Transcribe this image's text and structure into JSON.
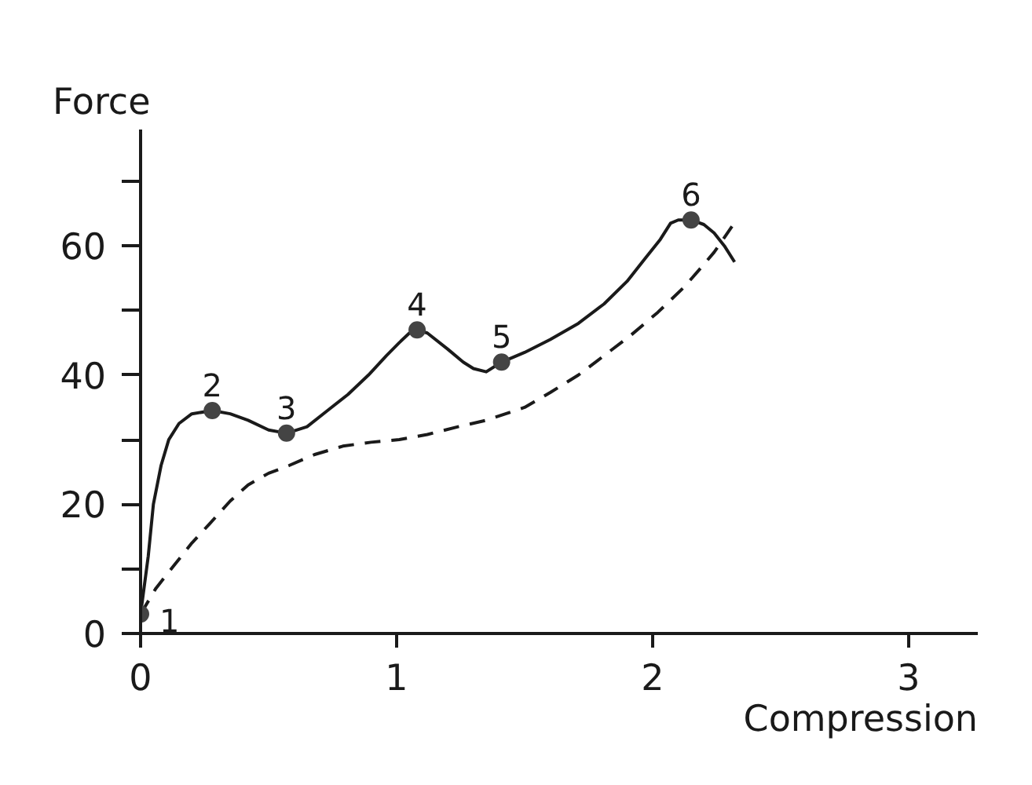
{
  "chart_data": {
    "type": "line",
    "xlabel": "Compression",
    "ylabel": "Force",
    "xlim": [
      0,
      3.27
    ],
    "ylim": [
      0,
      78
    ],
    "xticks": [
      0,
      1,
      2,
      3
    ],
    "yticks": [
      0,
      {
        "value": 10,
        "label": null
      },
      20,
      {
        "value": 30,
        "label": null
      },
      40,
      {
        "value": 50,
        "label": null
      },
      60,
      {
        "value": 70,
        "label": null
      }
    ],
    "grid": false,
    "series": [
      {
        "color": "#1a1a1a",
        "line_style": "solid",
        "marker": "none",
        "x": [
          0,
          0.01,
          0.03,
          0.05,
          0.08,
          0.11,
          0.15,
          0.2,
          0.28,
          0.35,
          0.42,
          0.5,
          0.57,
          0.65,
          0.73,
          0.81,
          0.89,
          0.96,
          1.01,
          1.05,
          1.08,
          1.12,
          1.2,
          1.26,
          1.3,
          1.35,
          1.41,
          1.5,
          1.6,
          1.71,
          1.81,
          1.9,
          1.97,
          2.03,
          2.07,
          2.1,
          2.15,
          2.2,
          2.24,
          2.28,
          2.32
        ],
        "values": [
          3,
          6,
          12,
          20,
          26,
          30,
          32.5,
          34,
          34.5,
          34,
          33,
          31.5,
          31,
          32,
          34.5,
          37,
          40,
          43,
          45,
          46.5,
          47,
          46.5,
          44,
          42,
          41,
          40.5,
          42,
          43.5,
          45.5,
          48,
          51,
          54.5,
          58,
          61,
          63.5,
          64,
          64,
          63.3,
          62,
          60,
          57.5
        ]
      },
      {
        "color": "#1a1a1a",
        "line_style": "dashed",
        "marker": "none",
        "x": [
          0,
          0.06,
          0.13,
          0.2,
          0.27,
          0.35,
          0.42,
          0.5,
          0.58,
          0.68,
          0.79,
          0.9,
          1.01,
          1.12,
          1.24,
          1.35,
          1.5,
          1.6,
          1.71,
          1.81,
          1.91,
          2.02,
          2.12,
          2.18,
          2.24,
          2.31
        ],
        "values": [
          3,
          7,
          10.5,
          14,
          17,
          20.5,
          23,
          24.8,
          26,
          27.7,
          29,
          29.6,
          30,
          30.8,
          32,
          33,
          35,
          37.3,
          40,
          43,
          46,
          49.7,
          53.5,
          56.2,
          59,
          63
        ]
      },
      {
        "type": "scatter",
        "color": "#444444",
        "marker": "circle",
        "x": [
          0,
          0.28,
          0.57,
          1.08,
          1.41,
          2.15
        ],
        "values": [
          3,
          34.5,
          31,
          47,
          42,
          64
        ]
      }
    ],
    "annotations": [
      {
        "text": "1",
        "x": 0,
        "y": 3
      },
      {
        "text": "2",
        "x": 0.28,
        "y": 34.5
      },
      {
        "text": "3",
        "x": 0.57,
        "y": 31
      },
      {
        "text": "4",
        "x": 1.08,
        "y": 47
      },
      {
        "text": "5",
        "x": 1.41,
        "y": 42
      },
      {
        "text": "6",
        "x": 2.15,
        "y": 64
      }
    ]
  }
}
